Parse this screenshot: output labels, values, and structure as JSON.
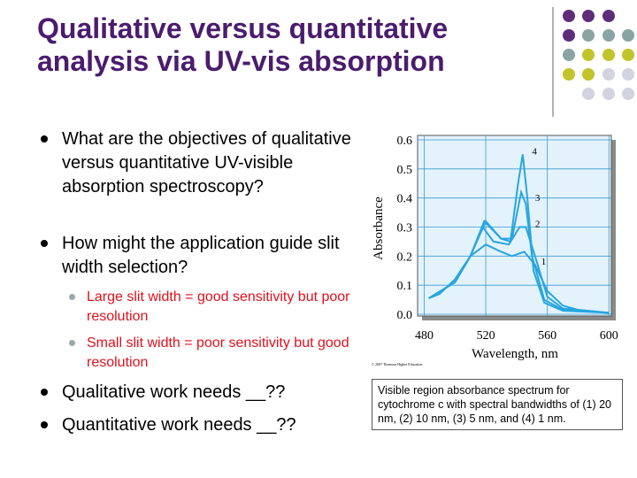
{
  "title": [
    "Qualitative versus quantitative",
    "analysis via UV-vis absorption"
  ],
  "bullets": [
    {
      "text": "What are the objectives of qualitative versus quantitative UV-visible absorption spectroscopy?"
    },
    {
      "text": "How might the application guide slit width selection?",
      "sub": [
        "Large slit width = good sensitivity but poor resolution",
        "Small slit width = poor sensitivity but good resolution"
      ]
    },
    {
      "text": "Qualitative work needs __??"
    },
    {
      "text": "Quantitative work needs __??"
    }
  ],
  "caption": "Visible region absorbance spectrum for cytochrome c with spectral bandwidths of (1) 20 nm, (2) 10 nm, (3) 5 nm, and (4) 1 nm.",
  "chart_data": {
    "type": "line",
    "x_label": "Wavelength, nm",
    "y_label": "Absorbance",
    "credit": "© 2007 Thomson Higher Education",
    "xlim": [
      478,
      601
    ],
    "ylim": [
      0,
      0.6
    ],
    "xticks": [
      480,
      520,
      560,
      600
    ],
    "yticks": [
      0.6,
      0.5,
      0.4,
      0.3,
      0.2,
      0.1,
      {
        "value": 0,
        "label": "0.0"
      }
    ],
    "grid": true,
    "color": "#27a6df",
    "series": [
      {
        "name": "1",
        "x": [
          483,
          490,
          500,
          510,
          520,
          530,
          537,
          545,
          552,
          560,
          570,
          580,
          600
        ],
        "values": [
          0.055,
          0.07,
          0.12,
          0.2,
          0.24,
          0.215,
          0.2,
          0.215,
          0.17,
          0.08,
          0.03,
          0.015,
          0.005
        ],
        "label_at": [
          548,
          0.17
        ]
      },
      {
        "name": "2",
        "x": [
          483,
          500,
          510,
          518,
          525,
          535,
          542,
          546,
          552,
          560,
          570,
          600
        ],
        "values": [
          0.055,
          0.11,
          0.2,
          0.3,
          0.25,
          0.24,
          0.3,
          0.3,
          0.2,
          0.06,
          0.02,
          0.005
        ],
        "label_at": [
          544,
          0.3
        ]
      },
      {
        "name": "3",
        "x": [
          483,
          500,
          510,
          519,
          530,
          537,
          543,
          546,
          550,
          558,
          570,
          600
        ],
        "values": [
          0.055,
          0.11,
          0.2,
          0.32,
          0.26,
          0.26,
          0.42,
          0.38,
          0.2,
          0.05,
          0.015,
          0.005
        ],
        "label_at": [
          544,
          0.39
        ]
      },
      {
        "name": "4",
        "x": [
          483,
          500,
          510,
          520,
          530,
          536,
          541,
          544,
          547,
          551,
          558,
          570,
          600
        ],
        "values": [
          0.055,
          0.11,
          0.2,
          0.32,
          0.26,
          0.25,
          0.45,
          0.55,
          0.4,
          0.15,
          0.04,
          0.012,
          0.005
        ],
        "label_at": [
          542,
          0.55
        ]
      }
    ]
  }
}
